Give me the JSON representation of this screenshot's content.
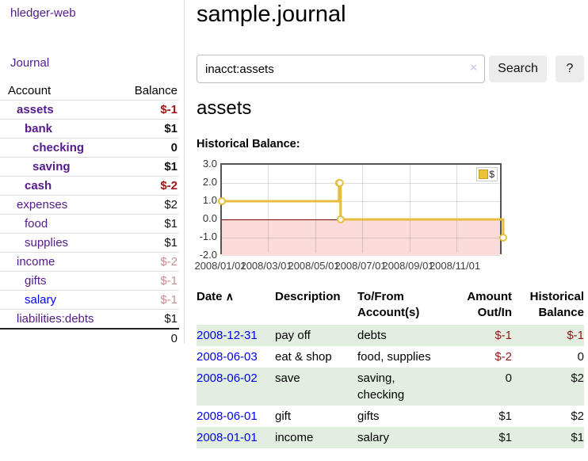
{
  "app": {
    "brand": "hledger-web",
    "nav_journal": "Journal"
  },
  "sidebar": {
    "header": {
      "account": "Account",
      "balance": "Balance"
    },
    "accounts": [
      {
        "name": "assets",
        "balance": "$-1"
      },
      {
        "name": "bank",
        "balance": "$1"
      },
      {
        "name": "checking",
        "balance": "0"
      },
      {
        "name": "saving",
        "balance": "$1"
      },
      {
        "name": "cash",
        "balance": "$-2"
      },
      {
        "name": "expenses",
        "balance": "$2"
      },
      {
        "name": "food",
        "balance": "$1"
      },
      {
        "name": "supplies",
        "balance": "$1"
      },
      {
        "name": "income",
        "balance": "$-2"
      },
      {
        "name": "gifts",
        "balance": "$-1"
      },
      {
        "name": "salary",
        "balance": "$-1"
      },
      {
        "name": "liabilities:debts",
        "balance": "$1"
      }
    ],
    "total": "0"
  },
  "main": {
    "title": "sample.journal",
    "search": {
      "value": "inacct:assets",
      "clear_icon": "×",
      "button_label": "Search",
      "help_label": "?"
    },
    "account_heading": "assets",
    "chart_heading": "Historical Balance:"
  },
  "chart_data": {
    "type": "line",
    "step": true,
    "title": "Historical Balance",
    "series": [
      {
        "name": "$",
        "x": [
          "2008-01-01",
          "2008-06-01",
          "2008-06-02",
          "2008-06-03",
          "2008-12-31"
        ],
        "values": [
          1,
          2,
          2,
          0,
          -1
        ]
      }
    ],
    "xrange": [
      "2008-01-01",
      "2008-12-31"
    ],
    "ylim": [
      -2.0,
      3.0
    ],
    "yticks": [
      "3.0",
      "2.0",
      "1.0",
      "0.0",
      "-1.0",
      "-2.0"
    ],
    "xticks": [
      "2008/01/01",
      "2008/03/01",
      "2008/05/01",
      "2008/07/01",
      "2008/09/01",
      "2008/11/01"
    ],
    "legend_position": "top-right",
    "grid": true,
    "line_color": "#e6bd3c",
    "marker_fill": "#ffffff",
    "negative_region_color": "#fbdada",
    "zero_line_color": "#7e0000"
  },
  "register": {
    "columns": {
      "date": "Date",
      "sort_indicator": "∧",
      "description": "Description",
      "accounts": "To/From Account(s)",
      "amount": "Amount Out/In",
      "balance": "Historical Balance"
    },
    "rows": [
      {
        "date": "2008-12-31",
        "description": "pay off",
        "accounts": "debts",
        "amount": "$-1",
        "balance": "$-1"
      },
      {
        "date": "2008-06-03",
        "description": "eat & shop",
        "accounts": "food, supplies",
        "amount": "$-2",
        "balance": "0"
      },
      {
        "date": "2008-06-02",
        "description": "save",
        "accounts": "saving, checking",
        "amount": "0",
        "balance": "$2"
      },
      {
        "date": "2008-06-01",
        "description": "gift",
        "accounts": "gifts",
        "amount": "$1",
        "balance": "$2"
      },
      {
        "date": "2008-01-01",
        "description": "income",
        "accounts": "salary",
        "amount": "$1",
        "balance": "$1"
      }
    ]
  }
}
